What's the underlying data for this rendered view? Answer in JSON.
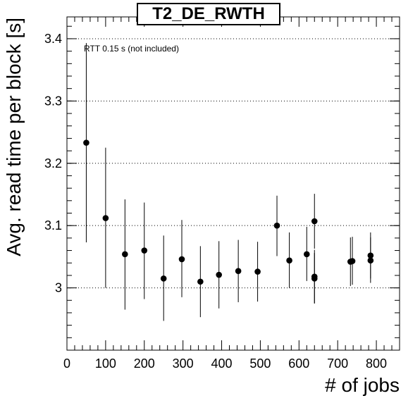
{
  "chart_data": {
    "type": "scatter",
    "title": "T2_DE_RWTH",
    "annotation": "RTT 0.15 s (not included)",
    "xlabel": "# of jobs",
    "ylabel": "Avg. read time per block [s]",
    "xlim": [
      0,
      860
    ],
    "ylim": [
      2.9,
      3.435
    ],
    "x_ticks": [
      "0",
      "100",
      "200",
      "300",
      "400",
      "500",
      "600",
      "700",
      "800"
    ],
    "y_ticks": [
      "3",
      "3.1",
      "3.2",
      "3.3",
      "3.4"
    ],
    "grid": "horizontal dotted",
    "marker_color": "#000000",
    "points": [
      {
        "x": 50,
        "y": 3.233,
        "ylo": 3.073,
        "yhi": 3.393
      },
      {
        "x": 100,
        "y": 3.112,
        "ylo": 3.0,
        "yhi": 3.225
      },
      {
        "x": 150,
        "y": 3.054,
        "ylo": 2.965,
        "yhi": 3.142
      },
      {
        "x": 200,
        "y": 3.06,
        "ylo": 2.982,
        "yhi": 3.137
      },
      {
        "x": 250,
        "y": 3.015,
        "ylo": 2.947,
        "yhi": 3.084
      },
      {
        "x": 297,
        "y": 3.046,
        "ylo": 2.985,
        "yhi": 3.109
      },
      {
        "x": 345,
        "y": 3.01,
        "ylo": 2.953,
        "yhi": 3.067
      },
      {
        "x": 393,
        "y": 3.021,
        "ylo": 2.967,
        "yhi": 3.075
      },
      {
        "x": 443,
        "y": 3.027,
        "ylo": 2.977,
        "yhi": 3.077
      },
      {
        "x": 493,
        "y": 3.026,
        "ylo": 2.978,
        "yhi": 3.074
      },
      {
        "x": 543,
        "y": 3.1,
        "ylo": 3.051,
        "yhi": 3.148
      },
      {
        "x": 575,
        "y": 3.044,
        "ylo": 3.0,
        "yhi": 3.089
      },
      {
        "x": 620,
        "y": 3.054,
        "ylo": 3.011,
        "yhi": 3.098
      },
      {
        "x": 640,
        "y": 3.107,
        "ylo": 3.063,
        "yhi": 3.151
      },
      {
        "x": 640,
        "y": 3.018,
        "ylo": 2.975,
        "yhi": 3.061
      },
      {
        "x": 640,
        "y": 3.015,
        "ylo": 2.975,
        "yhi": 3.056
      },
      {
        "x": 733,
        "y": 3.042,
        "ylo": 3.003,
        "yhi": 3.081
      },
      {
        "x": 738,
        "y": 3.043,
        "ylo": 3.005,
        "yhi": 3.082
      },
      {
        "x": 785,
        "y": 3.052,
        "ylo": 3.015,
        "yhi": 3.089
      },
      {
        "x": 785,
        "y": 3.044,
        "ylo": 3.008,
        "yhi": 3.081
      }
    ]
  }
}
